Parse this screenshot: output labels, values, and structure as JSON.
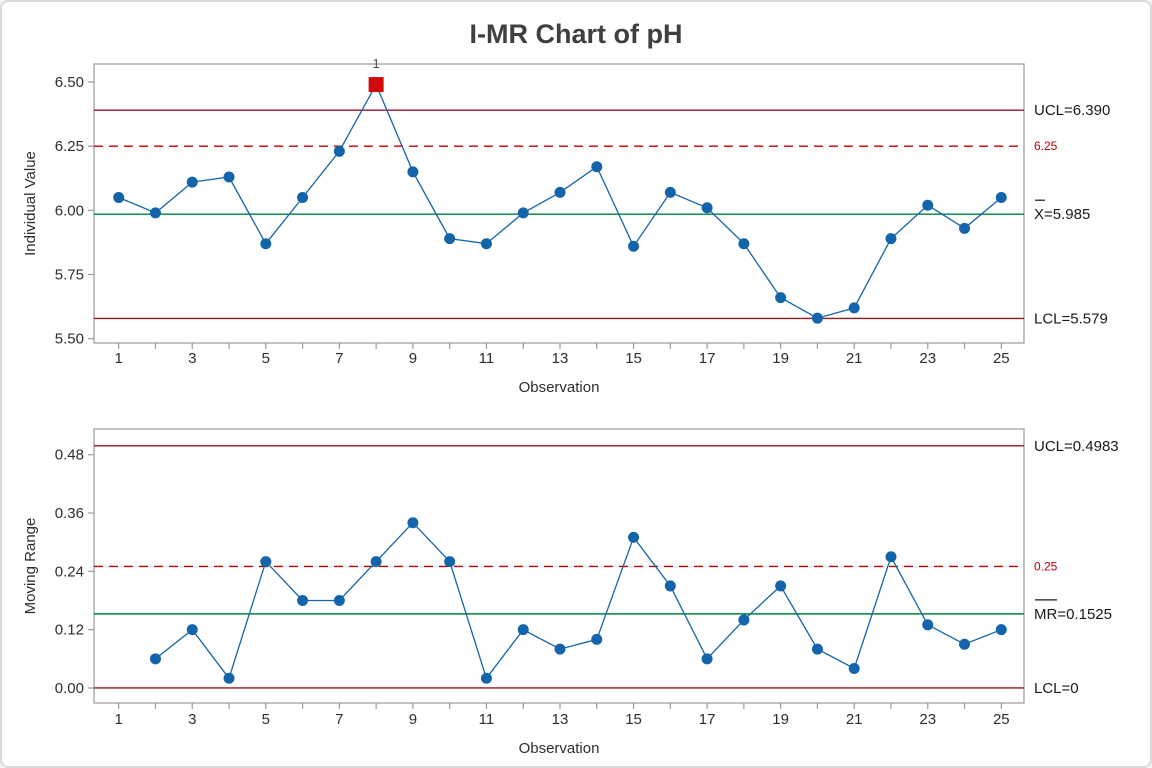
{
  "title": "I-MR Chart of pH",
  "colors": {
    "series": "#1464AC",
    "out_of_control": "#CE0A0A",
    "control_limit": "#8F1A1C",
    "spec_line": "#C00000",
    "center_line": "#008040",
    "frame": "#9A9A9A",
    "text": "#2E2E2E",
    "label_text": "#1A1A1A",
    "annotation": "#4D4D4D"
  },
  "chart_data": [
    {
      "type": "line",
      "name": "individuals-chart",
      "ylabel": "Individual Value",
      "xlabel": "Observation",
      "x": [
        1,
        2,
        3,
        4,
        5,
        6,
        7,
        8,
        9,
        10,
        11,
        12,
        13,
        14,
        15,
        16,
        17,
        18,
        19,
        20,
        21,
        22,
        23,
        24,
        25
      ],
      "values": [
        6.05,
        5.99,
        6.11,
        6.13,
        5.87,
        6.05,
        6.23,
        6.49,
        6.15,
        5.89,
        5.87,
        5.99,
        6.07,
        6.17,
        5.86,
        6.07,
        6.01,
        5.87,
        5.66,
        5.58,
        5.62,
        5.89,
        6.02,
        5.93,
        6.05
      ],
      "ytick_values": [
        5.5,
        5.75,
        6.0,
        6.25,
        6.5
      ],
      "yticks": [
        "5.50",
        "5.75",
        "6.00",
        "6.25",
        "6.50"
      ],
      "xtick_labels": [
        "1",
        "3",
        "5",
        "7",
        "9",
        "11",
        "13",
        "15",
        "17",
        "19",
        "21",
        "23",
        "25"
      ],
      "ylim": [
        5.4833,
        6.5701
      ],
      "grid": false,
      "legend": "none",
      "lines": [
        {
          "id": "ucl",
          "kind": "limit",
          "value": 6.39,
          "label": "UCL=6.390"
        },
        {
          "id": "spec",
          "kind": "spec",
          "value": 6.25,
          "label": "6.25"
        },
        {
          "id": "center",
          "kind": "center",
          "value": 5.985,
          "prefix": "X",
          "suffix": "=5.985"
        },
        {
          "id": "lcl",
          "kind": "limit",
          "value": 5.579,
          "label": "LCL=5.579"
        }
      ],
      "out_of_control": [
        {
          "x": 8,
          "value": 6.49,
          "label": "1"
        }
      ]
    },
    {
      "type": "line",
      "name": "moving-range-chart",
      "ylabel": "Moving Range",
      "xlabel": "Observation",
      "x": [
        1,
        2,
        3,
        4,
        5,
        6,
        7,
        8,
        9,
        10,
        11,
        12,
        13,
        14,
        15,
        16,
        17,
        18,
        19,
        20,
        21,
        22,
        23,
        24,
        25
      ],
      "values": [
        null,
        0.06,
        0.12,
        0.02,
        0.26,
        0.18,
        0.18,
        0.26,
        0.34,
        0.26,
        0.02,
        0.12,
        0.08,
        0.1,
        0.31,
        0.21,
        0.06,
        0.14,
        0.21,
        0.08,
        0.04,
        0.27,
        0.13,
        0.09,
        0.12
      ],
      "ytick_values": [
        0.0,
        0.12,
        0.24,
        0.36,
        0.48
      ],
      "yticks": [
        "0.00",
        "0.12",
        "0.24",
        "0.36",
        "0.48"
      ],
      "xtick_labels": [
        "1",
        "3",
        "5",
        "7",
        "9",
        "11",
        "13",
        "15",
        "17",
        "19",
        "21",
        "23",
        "25"
      ],
      "ylim": [
        -0.0309,
        0.5329
      ],
      "grid": false,
      "legend": "none",
      "lines": [
        {
          "id": "ucl",
          "kind": "limit",
          "value": 0.4983,
          "label": "UCL=0.4983"
        },
        {
          "id": "spec",
          "kind": "spec",
          "value": 0.25,
          "label": "0.25"
        },
        {
          "id": "center",
          "kind": "center",
          "value": 0.1525,
          "prefix": "MR",
          "suffix": "=0.1525"
        },
        {
          "id": "lcl",
          "kind": "limit",
          "value": 0,
          "label": "LCL=0"
        }
      ],
      "out_of_control": []
    }
  ]
}
